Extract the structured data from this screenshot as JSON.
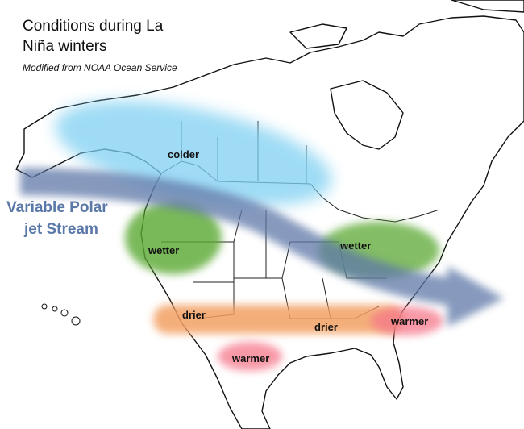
{
  "header": {
    "title_lines": [
      "Conditions during La",
      "Niña winters"
    ],
    "subtitle": "Modified from NOAA Ocean Service"
  },
  "jet_stream": {
    "label_lines": [
      "Variable Polar",
      "jet Stream"
    ]
  },
  "regions": [
    {
      "label": "colder"
    },
    {
      "label": "wetter"
    },
    {
      "label": "wetter"
    },
    {
      "label": "drier"
    },
    {
      "label": "drier"
    },
    {
      "label": "warmer"
    },
    {
      "label": "warmer"
    }
  ]
}
